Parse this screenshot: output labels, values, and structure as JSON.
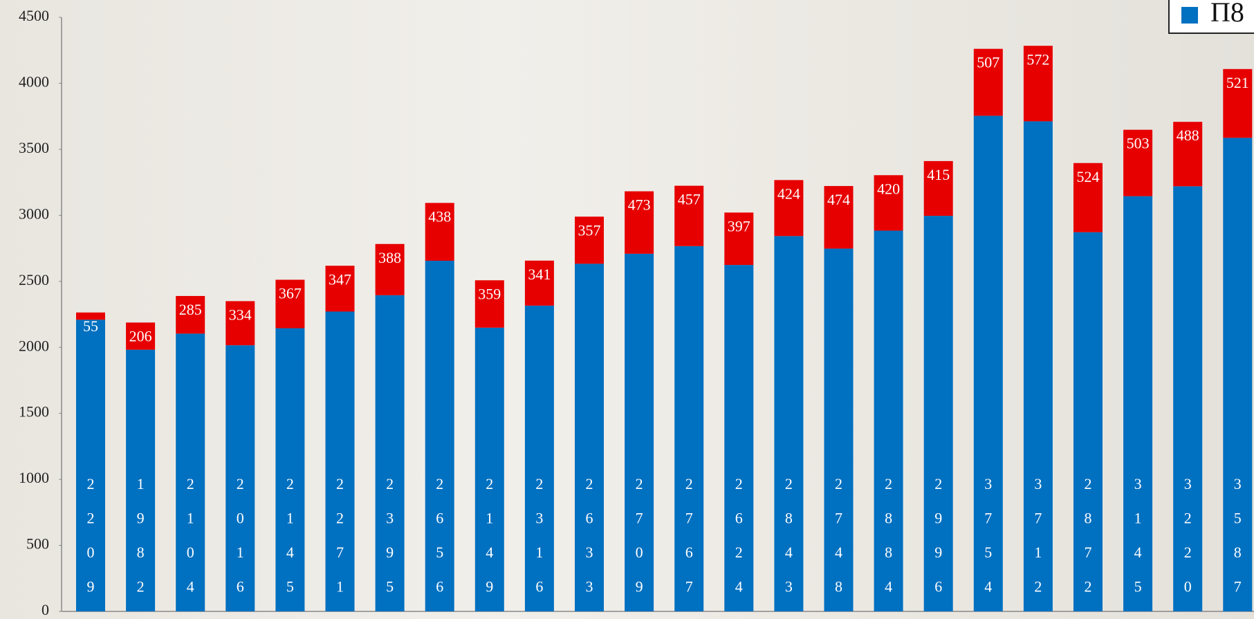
{
  "chart_data": {
    "type": "stacked_bar",
    "categories": [
      null,
      null,
      null,
      null,
      null,
      null,
      null,
      null,
      null,
      null,
      null,
      null,
      null,
      null,
      null,
      null,
      null,
      null,
      null,
      null,
      null,
      null,
      null,
      null
    ],
    "series": [
      {
        "name": "Π8",
        "color": "#0070c0",
        "values": [
          2209,
          1982,
          2104,
          2016,
          2145,
          2271,
          2395,
          2656,
          2149,
          2316,
          2633,
          2709,
          2767,
          2624,
          2843,
          2748,
          2884,
          2996,
          3754,
          3712,
          2872,
          3145,
          3220,
          3587
        ]
      },
      {
        "color": "#e60000",
        "values": [
          55,
          206,
          285,
          334,
          367,
          347,
          388,
          438,
          359,
          341,
          357,
          473,
          457,
          397,
          424,
          474,
          420,
          415,
          507,
          572,
          524,
          503,
          488,
          521
        ]
      }
    ],
    "ylim": [
      0,
      4500
    ],
    "yticks": [
      0,
      500,
      1000,
      1500,
      2000,
      2500,
      3000,
      3500,
      4000,
      4500
    ]
  }
}
